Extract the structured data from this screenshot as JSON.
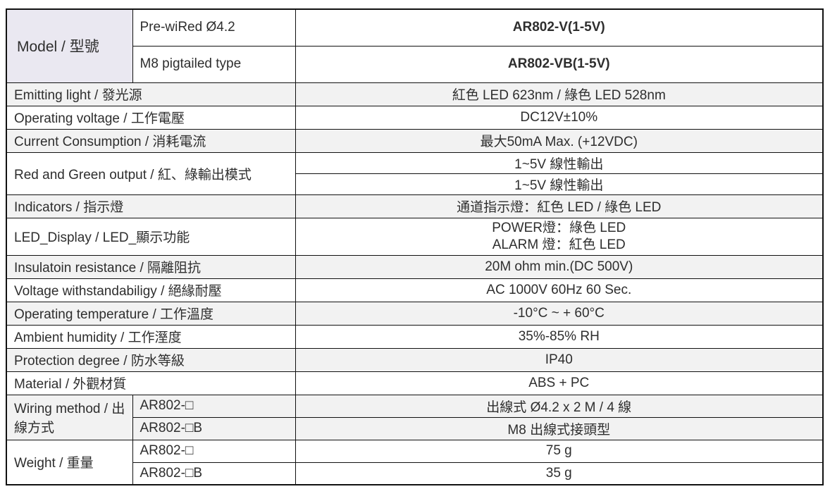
{
  "header": {
    "model_label": "Model / 型號",
    "variants": [
      {
        "type_label": "Pre-wiRed Ø4.2",
        "model": "AR802-V(1-5V)"
      },
      {
        "type_label": "M8 pigtailed type",
        "model": "AR802-VB(1-5V)"
      }
    ]
  },
  "specs": [
    {
      "label": "Emitting light / 發光源",
      "value": "紅色 LED 623nm / 綠色 LED 528nm"
    },
    {
      "label": "Operating voltage / 工作電壓",
      "value": "DC12V±10%"
    },
    {
      "label": "Current Consumption / 消耗電流",
      "value": "最大50mA Max. (+12VDC)"
    },
    {
      "label": "Red and Green output / 紅、綠輸出模式",
      "value_row1": "1~5V 線性輸出",
      "value_row2": "1~5V 線性輸出"
    },
    {
      "label": "Indicators / 指示燈",
      "value": "通道指示燈：紅色 LED / 綠色 LED"
    },
    {
      "label": "LED_Display / LED_顯示功能",
      "value_line1": "POWER燈：綠色 LED",
      "value_line2": "ALARM 燈：紅色 LED"
    },
    {
      "label": "Insulatoin resistance / 隔離阻抗",
      "value": "20M ohm min.(DC 500V)"
    },
    {
      "label": "Voltage withstandabiligy / 絕緣耐壓",
      "value": "AC 1000V 60Hz 60 Sec."
    },
    {
      "label": "Operating temperature / 工作溫度",
      "value": "-10°C ~ + 60°C"
    },
    {
      "label": "Ambient humidity / 工作溼度",
      "value": "35%-85% RH"
    },
    {
      "label": "Protection degree / 防水等級",
      "value": "IP40"
    },
    {
      "label": "Material / 外觀材質",
      "value": "ABS + PC"
    }
  ],
  "wiring_method": {
    "label": "Wiring method / 出線方式",
    "rows": [
      {
        "variant": "AR802-□",
        "value": "出線式 Ø4.2 x 2 M / 4 線"
      },
      {
        "variant": "AR802-□B",
        "value": "M8 出線式接頭型"
      }
    ]
  },
  "weight": {
    "label": "Weight / 重量",
    "rows": [
      {
        "variant": "AR802-□",
        "value": "75 g"
      },
      {
        "variant": "AR802-□B",
        "value": "35 g"
      }
    ]
  },
  "colors": {
    "model_header_bg": "#eae8f1",
    "alt_row_bg": "#f2f2f2",
    "border": "#111111",
    "text": "#2e2e2e"
  }
}
